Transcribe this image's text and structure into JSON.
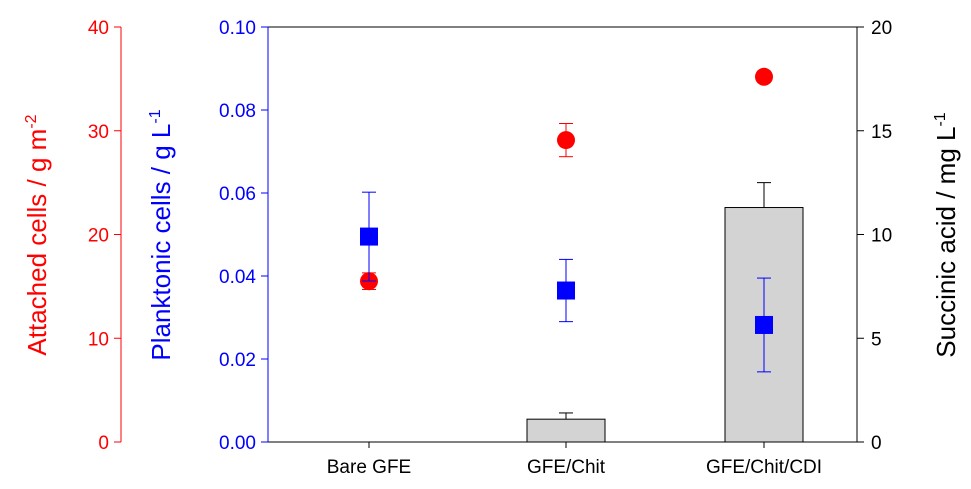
{
  "chart_data": {
    "type": "bar",
    "categories": [
      "Bare GFE",
      "GFE/Chit",
      "GFE/Chit/CDI"
    ],
    "axes": {
      "attached": {
        "label_base": "Attached cells / g m",
        "label_sup": "-2",
        "range": [
          0,
          40
        ],
        "ticks": [
          "0",
          "10",
          "20",
          "30",
          "40"
        ],
        "color": "#ff0000"
      },
      "planktonic": {
        "label_base": "Planktonic cells / g L",
        "label_sup": "-1",
        "range": [
          0,
          0.1
        ],
        "ticks": [
          "0.00",
          "0.02",
          "0.04",
          "0.06",
          "0.08",
          "0.10"
        ],
        "color": "#0000ff"
      },
      "succinic": {
        "label_base": "Succinic acid / mg L",
        "label_sup": "-1",
        "range": [
          0,
          20
        ],
        "ticks": [
          "0",
          "5",
          "10",
          "15",
          "20"
        ],
        "color": "#000000"
      }
    },
    "series": [
      {
        "kind": "bar",
        "axis": "succinic",
        "color": "#d3d3d3",
        "values": [
          null,
          1.1,
          11.3
        ],
        "errors": [
          null,
          0.3,
          1.2
        ]
      },
      {
        "kind": "scatter-circle",
        "axis": "attached",
        "color": "#ff0000",
        "values": [
          15.5,
          29.1,
          35.2
        ],
        "errors": [
          0.8,
          1.6,
          0
        ]
      },
      {
        "kind": "scatter-square",
        "axis": "planktonic",
        "color": "#0000ff",
        "values": [
          0.0495,
          0.0365,
          0.0282
        ],
        "errors": [
          0.0107,
          0.0075,
          0.0113
        ]
      }
    ]
  }
}
